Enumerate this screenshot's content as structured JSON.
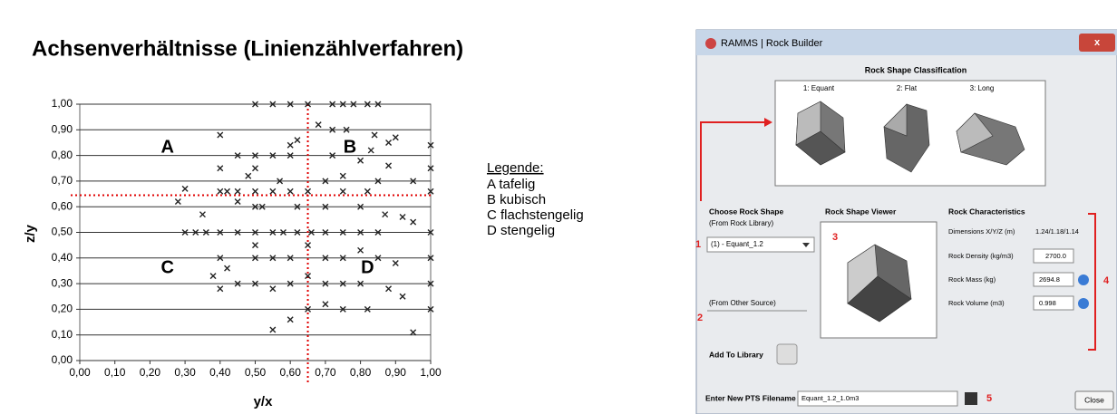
{
  "chart_data": {
    "type": "scatter",
    "title": "Achsenverhältnisse (Linienzählverfahren)",
    "x_label": "y/x",
    "y_label": "z/y",
    "color": "#222222",
    "grid": true,
    "xlim": [
      0,
      1
    ],
    "ylim": [
      0,
      1
    ],
    "xticks": [
      {
        "value": 0,
        "label": "0,00"
      },
      {
        "value": 0.1,
        "label": "0,10"
      },
      {
        "value": 0.2,
        "label": "0,20"
      },
      {
        "value": 0.3,
        "label": "0,30"
      },
      {
        "value": 0.4,
        "label": "0,40"
      },
      {
        "value": 0.5,
        "label": "0,50"
      },
      {
        "value": 0.6,
        "label": "0,60"
      },
      {
        "value": 0.7,
        "label": "0,70"
      },
      {
        "value": 0.8,
        "label": "0,80"
      },
      {
        "value": 0.9,
        "label": "0,90"
      },
      {
        "value": 1,
        "label": "1,00"
      }
    ],
    "yticks": [
      {
        "value": 0,
        "label": "0,00"
      },
      {
        "value": 0.1,
        "label": "0,10"
      },
      {
        "value": 0.2,
        "label": "0,20"
      },
      {
        "value": 0.3,
        "label": "0,30"
      },
      {
        "value": 0.4,
        "label": "0,40"
      },
      {
        "value": 0.5,
        "label": "0,50"
      },
      {
        "value": 0.6,
        "label": "0,60"
      },
      {
        "value": 0.7,
        "label": "0,70"
      },
      {
        "value": 0.8,
        "label": "0,80"
      },
      {
        "value": 0.9,
        "label": "0,90"
      },
      {
        "value": 1,
        "label": "1,00"
      }
    ],
    "reference_lines": {
      "x": 0.65,
      "y": 0.645,
      "color": "#e00000"
    },
    "annotations": [
      {
        "text": "A",
        "x": 0.25,
        "y": 0.83
      },
      {
        "text": "B",
        "x": 0.77,
        "y": 0.83
      },
      {
        "text": "C",
        "x": 0.25,
        "y": 0.36
      },
      {
        "text": "D",
        "x": 0.82,
        "y": 0.36
      }
    ],
    "legend": {
      "title": "Legende:",
      "items": [
        "A tafelig",
        "B kubisch",
        "C flachstengelig",
        "D stengelig"
      ]
    },
    "x": [
      0.5,
      0.55,
      0.6,
      0.65,
      0.72,
      0.75,
      0.78,
      0.82,
      0.85,
      0.4,
      0.68,
      0.72,
      0.76,
      0.84,
      0.62,
      0.6,
      0.9,
      0.88,
      0.5,
      0.55,
      0.6,
      0.4,
      0.5,
      0.45,
      0.72,
      0.8,
      0.88,
      0.83,
      1.0,
      0.48,
      0.57,
      0.7,
      0.75,
      0.85,
      0.95,
      1.0,
      0.28,
      0.3,
      0.4,
      0.42,
      0.45,
      0.5,
      0.55,
      0.6,
      0.65,
      0.75,
      0.82,
      1.0,
      0.35,
      0.45,
      0.5,
      0.52,
      0.62,
      0.7,
      0.8,
      0.87,
      0.92,
      0.95,
      0.3,
      0.33,
      0.36,
      0.4,
      0.45,
      0.5,
      0.55,
      0.58,
      0.62,
      0.66,
      0.7,
      0.75,
      0.8,
      0.85,
      1.0,
      0.38,
      0.4,
      0.42,
      0.5,
      0.5,
      0.55,
      0.6,
      0.65,
      0.7,
      0.75,
      0.8,
      0.85,
      0.9,
      1.0,
      0.4,
      0.45,
      0.5,
      0.55,
      0.6,
      0.65,
      0.7,
      0.75,
      0.8,
      0.88,
      0.92,
      1.0,
      0.55,
      0.6,
      0.65,
      0.7,
      0.75,
      0.82,
      0.95,
      1.0
    ],
    "values": [
      1.0,
      1.0,
      1.0,
      1.0,
      1.0,
      1.0,
      1.0,
      1.0,
      1.0,
      0.88,
      0.92,
      0.9,
      0.9,
      0.88,
      0.86,
      0.84,
      0.87,
      0.85,
      0.8,
      0.8,
      0.8,
      0.75,
      0.75,
      0.8,
      0.8,
      0.78,
      0.76,
      0.82,
      0.84,
      0.72,
      0.7,
      0.7,
      0.72,
      0.7,
      0.7,
      0.75,
      0.62,
      0.67,
      0.66,
      0.66,
      0.66,
      0.66,
      0.66,
      0.66,
      0.66,
      0.66,
      0.66,
      0.66,
      0.57,
      0.62,
      0.6,
      0.6,
      0.6,
      0.6,
      0.6,
      0.57,
      0.56,
      0.54,
      0.5,
      0.5,
      0.5,
      0.5,
      0.5,
      0.5,
      0.5,
      0.5,
      0.5,
      0.5,
      0.5,
      0.5,
      0.5,
      0.5,
      0.5,
      0.33,
      0.4,
      0.36,
      0.45,
      0.4,
      0.4,
      0.4,
      0.45,
      0.4,
      0.4,
      0.43,
      0.4,
      0.38,
      0.4,
      0.28,
      0.3,
      0.3,
      0.28,
      0.3,
      0.33,
      0.3,
      0.3,
      0.3,
      0.28,
      0.25,
      0.3,
      0.12,
      0.16,
      0.2,
      0.22,
      0.2,
      0.2,
      0.11,
      0.2
    ]
  },
  "dialog": {
    "title": "RAMMS | Rock Builder",
    "classification": {
      "heading": "Rock Shape Classification",
      "shapes": [
        "1: Equant",
        "2: Flat",
        "3: Long"
      ]
    },
    "choose": {
      "heading": "Choose Rock Shape",
      "subheading": "(From Rock Library)",
      "selected": "(1) - Equant_1.2",
      "other_source": "(From Other Source)",
      "add_button": "Add To Library"
    },
    "viewer_heading": "Rock Shape Viewer",
    "characteristics": {
      "heading": "Rock Characteristics",
      "rows": [
        {
          "label": "Dimensions X/Y/Z (m)",
          "value": "1.24/1.18/1.14"
        },
        {
          "label": "Rock Density (kg/m3)",
          "value": "2700.0"
        },
        {
          "label": "Rock Mass (kg)",
          "value": "2694.8"
        },
        {
          "label": "Rock Volume (m3)",
          "value": "0.998"
        }
      ]
    },
    "filename": {
      "label": "Enter New PTS Filename",
      "value": "Equant_1.2_1.0m3"
    },
    "close": "Close",
    "markers": [
      "1",
      "2",
      "3",
      "4",
      "5"
    ]
  }
}
